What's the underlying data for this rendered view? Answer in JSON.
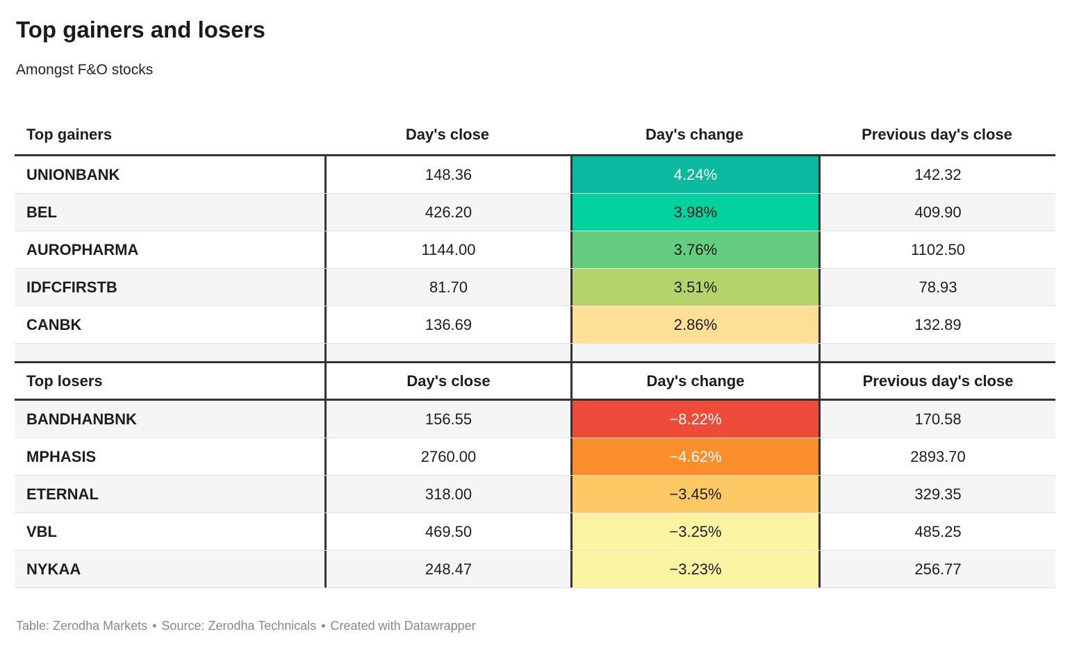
{
  "title": "Top gainers and losers",
  "subtitle": "Amongst F&O stocks",
  "colors": {
    "accent_border": "#333333",
    "row_stripe": "#f5f5f5",
    "body_text": "#1d1d1d",
    "footer_text": "#888888"
  },
  "gainers": {
    "section_label": "Top gainers",
    "col_close": "Day's close",
    "col_change": "Day's change",
    "col_prev": "Previous day's close",
    "rows": [
      {
        "name": "UNIONBANK",
        "close": "148.36",
        "change": "4.24%",
        "prev": "142.32",
        "bg": "#0ab99e",
        "fg": "#ffffff"
      },
      {
        "name": "BEL",
        "close": "426.20",
        "change": "3.98%",
        "prev": "409.90",
        "bg": "#03d29e",
        "fg": "#1d1d1d"
      },
      {
        "name": "AUROPHARMA",
        "close": "1144.00",
        "change": "3.76%",
        "prev": "1102.50",
        "bg": "#63cc7e",
        "fg": "#1d1d1d"
      },
      {
        "name": "IDFCFIRSTB",
        "close": "81.70",
        "change": "3.51%",
        "prev": "78.93",
        "bg": "#b4d36a",
        "fg": "#1d1d1d"
      },
      {
        "name": "CANBK",
        "close": "136.69",
        "change": "2.86%",
        "prev": "132.89",
        "bg": "#fde096",
        "fg": "#1d1d1d"
      }
    ]
  },
  "losers": {
    "section_label": "Top losers",
    "col_close": "Day's close",
    "col_change": "Day's change",
    "col_prev": "Previous day's close",
    "rows": [
      {
        "name": "BANDHANBNK",
        "close": "156.55",
        "change": "−8.22%",
        "prev": "170.58",
        "bg": "#ef4b3b",
        "fg": "#ffffff"
      },
      {
        "name": "MPHASIS",
        "close": "2760.00",
        "change": "−4.62%",
        "prev": "2893.70",
        "bg": "#f98e2b",
        "fg": "#ffffff"
      },
      {
        "name": "ETERNAL",
        "close": "318.00",
        "change": "−3.45%",
        "prev": "329.35",
        "bg": "#fcc964",
        "fg": "#1d1d1d"
      },
      {
        "name": "VBL",
        "close": "469.50",
        "change": "−3.25%",
        "prev": "485.25",
        "bg": "#fdf4a3",
        "fg": "#1d1d1d"
      },
      {
        "name": "NYKAA",
        "close": "248.47",
        "change": "−3.23%",
        "prev": "256.77",
        "bg": "#fdf4a3",
        "fg": "#1d1d1d"
      }
    ]
  },
  "footer": {
    "table_label": "Table:",
    "table_credit": "Zerodha Markets",
    "source_label": "Source:",
    "source_credit": "Zerodha Technicals",
    "created_with": "Created with Datawrapper",
    "separator": "•"
  },
  "chart_data": [
    {
      "type": "table",
      "title": "Top gainers",
      "columns": [
        "Top gainers",
        "Day's close",
        "Day's change",
        "Previous day's close"
      ],
      "rows": [
        [
          "UNIONBANK",
          148.36,
          4.24,
          142.32
        ],
        [
          "BEL",
          426.2,
          3.98,
          409.9
        ],
        [
          "AUROPHARMA",
          1144.0,
          3.76,
          1102.5
        ],
        [
          "IDFCFIRSTB",
          81.7,
          3.51,
          78.93
        ],
        [
          "CANBK",
          136.69,
          2.86,
          132.89
        ]
      ],
      "change_unit": "%",
      "color_scale": "green (high gain) to yellow (low gain), heatmap on Day's change column"
    },
    {
      "type": "table",
      "title": "Top losers",
      "columns": [
        "Top losers",
        "Day's close",
        "Day's change",
        "Previous day's close"
      ],
      "rows": [
        [
          "BANDHANBNK",
          156.55,
          -8.22,
          170.58
        ],
        [
          "MPHASIS",
          2760.0,
          -4.62,
          2893.7
        ],
        [
          "ETERNAL",
          318.0,
          -3.45,
          329.35
        ],
        [
          "VBL",
          469.5,
          -3.25,
          485.25
        ],
        [
          "NYKAA",
          248.47,
          -3.23,
          256.77
        ]
      ],
      "change_unit": "%",
      "color_scale": "red (big loss) to pale yellow (small loss), heatmap on Day's change column"
    }
  ]
}
